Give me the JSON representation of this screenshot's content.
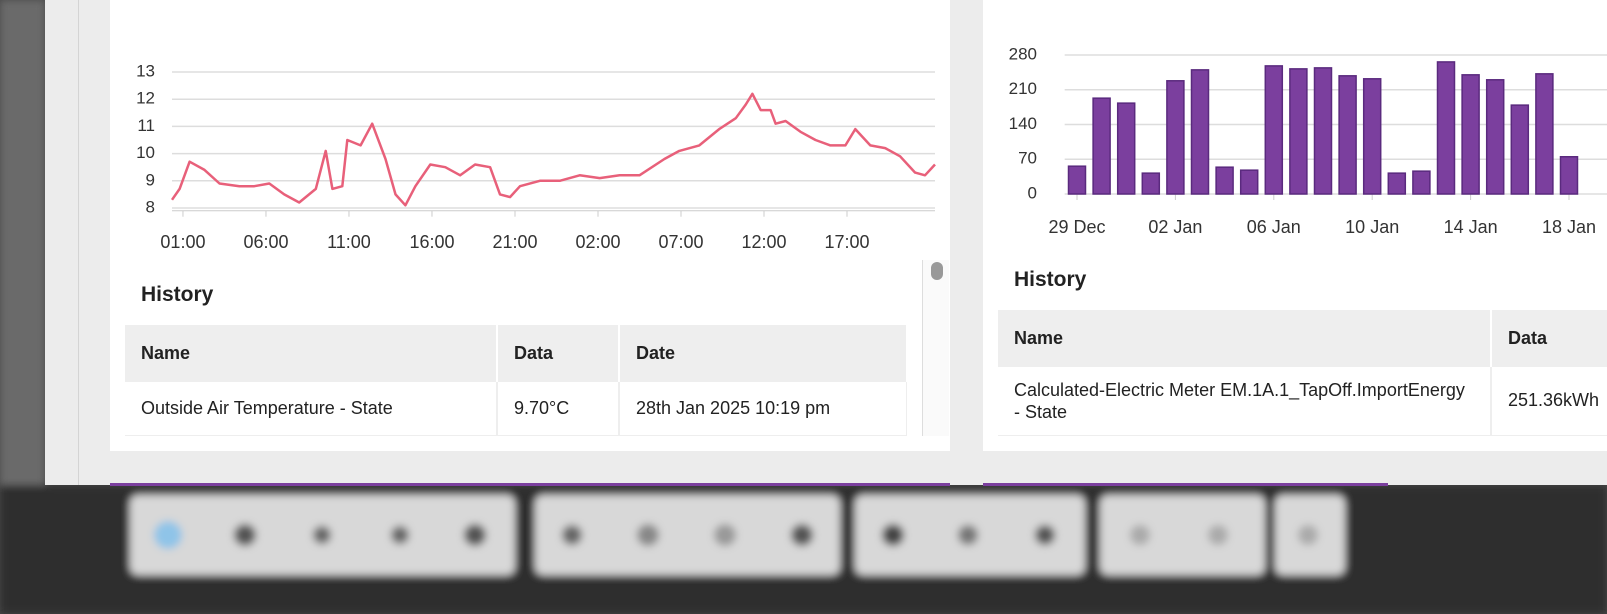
{
  "chart_data": [
    {
      "type": "line",
      "color": "#e8607a",
      "x": [
        0.34,
        0.8,
        1.4,
        2.3,
        3.2,
        4.4,
        5.3,
        6.2,
        7.1,
        8,
        9,
        9.6,
        10,
        10.6,
        10.9,
        11.7,
        12.4,
        13.2,
        13.8,
        14.4,
        15,
        15.9,
        16.8,
        17.7,
        18.6,
        19.5,
        20.1,
        20.7,
        21.3,
        22.5,
        23.7,
        24.9,
        26.1,
        27.3,
        28.5,
        30,
        30.9,
        32.1,
        33.3,
        34.3,
        34.9,
        35.3,
        35.8,
        36.4,
        36.7,
        37.3,
        38.2,
        39.1,
        40,
        40.9,
        41.5,
        42.4,
        43.3,
        44.2,
        45.1,
        45.7,
        46.3
      ],
      "values": [
        8.3,
        8.7,
        9.7,
        9.4,
        8.9,
        8.8,
        8.8,
        8.9,
        8.5,
        8.2,
        8.7,
        10.1,
        8.7,
        8.8,
        10.5,
        10.3,
        11.1,
        9.8,
        8.5,
        8.1,
        8.8,
        9.6,
        9.5,
        9.2,
        9.6,
        9.5,
        8.5,
        8.4,
        8.8,
        9.0,
        9.0,
        9.2,
        9.1,
        9.2,
        9.2,
        9.8,
        10.1,
        10.3,
        10.9,
        11.3,
        11.8,
        12.2,
        11.6,
        11.6,
        11.1,
        11.2,
        10.8,
        10.5,
        10.3,
        10.3,
        10.9,
        10.3,
        10.2,
        9.9,
        9.3,
        9.2,
        9.6
      ],
      "xlim": [
        0.34,
        46.3
      ],
      "xticks": [
        {
          "value": 1,
          "label": "01:00"
        },
        {
          "value": 6,
          "label": "06:00"
        },
        {
          "value": 11,
          "label": "11:00"
        },
        {
          "value": 16,
          "label": "16:00"
        },
        {
          "value": 21,
          "label": "21:00"
        },
        {
          "value": 26,
          "label": "02:00"
        },
        {
          "value": 31,
          "label": "07:00"
        },
        {
          "value": 36,
          "label": "12:00"
        },
        {
          "value": 41,
          "label": "17:00"
        }
      ],
      "ylim": [
        7.9,
        13
      ],
      "yticks": [
        8,
        9,
        10,
        11,
        12,
        13
      ],
      "grid": true
    },
    {
      "type": "bar",
      "color": "#7b3f9e",
      "categories": [
        "29 Dec",
        null,
        null,
        null,
        "02 Jan",
        null,
        null,
        null,
        "06 Jan",
        null,
        null,
        null,
        "10 Jan",
        null,
        null,
        null,
        "14 Jan",
        null,
        null,
        null,
        "18 Jan"
      ],
      "values": [
        56,
        193,
        183,
        42,
        228,
        250,
        54,
        48,
        258,
        252,
        254,
        238,
        232,
        42,
        46,
        266,
        240,
        230,
        179,
        242,
        75
      ],
      "ylim": [
        0,
        290
      ],
      "yticks": [
        0,
        70,
        140,
        210,
        280
      ],
      "grid": true
    }
  ],
  "tables": [
    {
      "title": "History",
      "columns": [
        "Name",
        "Data",
        "Date"
      ],
      "rows": [
        [
          "Outside Air Temperature - State",
          "9.70°C",
          "28th Jan 2025 10:19 pm"
        ]
      ]
    },
    {
      "title": "History",
      "columns": [
        "Name",
        "Data"
      ],
      "rows": [
        [
          "Calculated-Electric Meter EM.1A.1_TapOff.ImportEnergy - State",
          "251.36kWh"
        ]
      ]
    }
  ]
}
